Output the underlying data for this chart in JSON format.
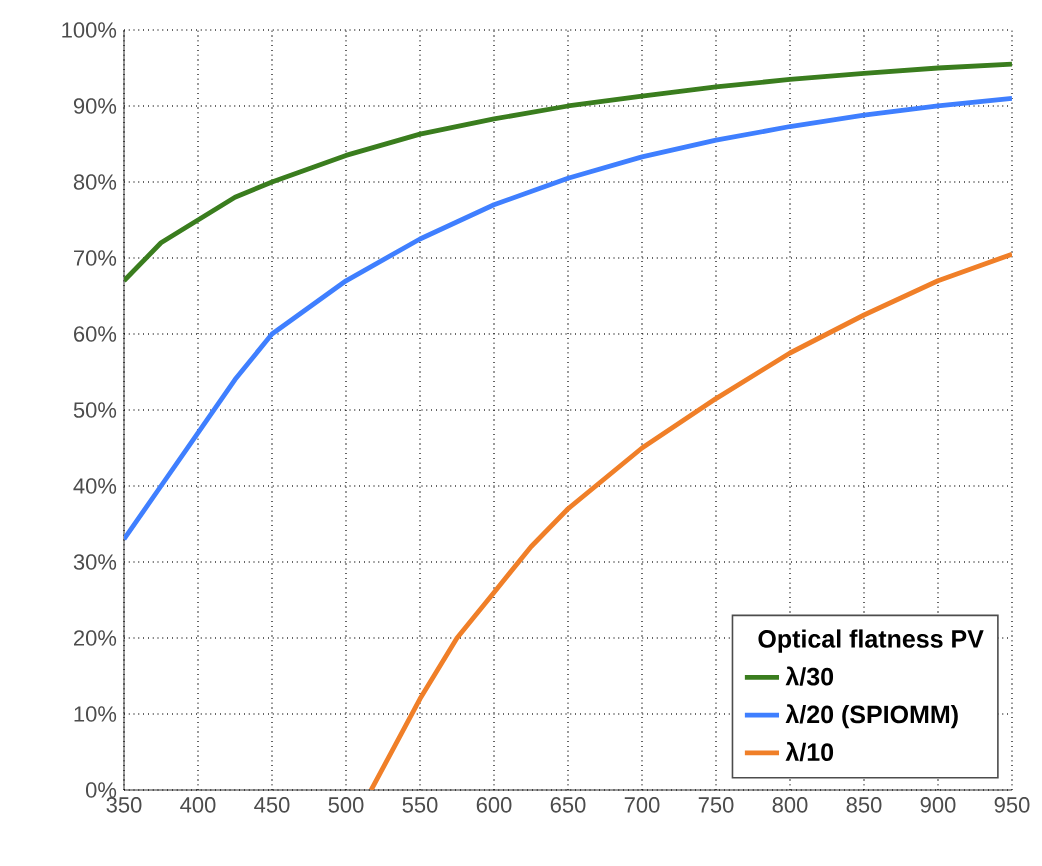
{
  "chart_data": {
    "type": "line",
    "legend_title": "Optical flatness PV",
    "legend": "bottom right",
    "grid": true,
    "line_style": "solid",
    "xlim": [
      350,
      950
    ],
    "xticks": [
      350,
      400,
      450,
      500,
      550,
      600,
      650,
      700,
      750,
      800,
      850,
      900,
      950
    ],
    "ylim": [
      0,
      100
    ],
    "yticks": [
      {
        "value": 0,
        "label": "0%"
      },
      {
        "value": 10,
        "label": "10%"
      },
      {
        "value": 20,
        "label": "20%"
      },
      {
        "value": 30,
        "label": "30%"
      },
      {
        "value": 40,
        "label": "40%"
      },
      {
        "value": 50,
        "label": "50%"
      },
      {
        "value": 60,
        "label": "60%"
      },
      {
        "value": 70,
        "label": "70%"
      },
      {
        "value": 80,
        "label": "80%"
      },
      {
        "value": 90,
        "label": "90%"
      },
      {
        "value": 100,
        "label": "100%"
      }
    ],
    "series": [
      {
        "name": "λ/30",
        "color": "#3a7d1e",
        "x": [
          350,
          375,
          400,
          425,
          450,
          500,
          550,
          600,
          650,
          700,
          750,
          800,
          850,
          900,
          950
        ],
        "values": [
          67,
          72,
          75,
          78,
          80,
          83.5,
          86.3,
          88.3,
          90,
          91.3,
          92.5,
          93.5,
          94.3,
          95,
          95.5
        ]
      },
      {
        "name": "λ/20 (SPIOMM)",
        "color": "#3f7fff",
        "x": [
          350,
          375,
          400,
          425,
          450,
          500,
          550,
          600,
          650,
          700,
          750,
          800,
          850,
          900,
          950
        ],
        "values": [
          33,
          40,
          47,
          54,
          60,
          67,
          72.5,
          77,
          80.5,
          83.3,
          85.5,
          87.3,
          88.8,
          90,
          91
        ]
      },
      {
        "name": "λ/10",
        "color": "#f07f28",
        "x": [
          517,
          550,
          575,
          600,
          625,
          650,
          700,
          750,
          800,
          850,
          900,
          950
        ],
        "values": [
          0,
          12,
          20,
          26,
          32,
          37,
          45,
          51.5,
          57.5,
          62.5,
          67,
          70.5
        ]
      }
    ]
  }
}
